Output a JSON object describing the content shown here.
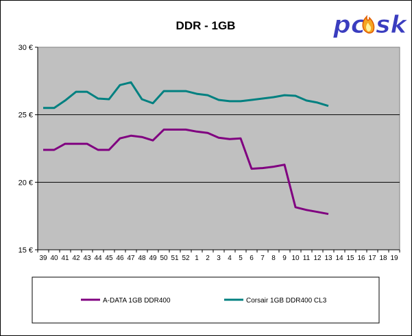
{
  "chart_data": {
    "type": "line",
    "title": "DDR - 1GB",
    "xlabel": "",
    "ylabel": "",
    "categories": [
      "39",
      "40",
      "41",
      "42",
      "43",
      "44",
      "45",
      "46",
      "47",
      "48",
      "49",
      "50",
      "51",
      "52",
      "1",
      "2",
      "3",
      "4",
      "5",
      "6",
      "7",
      "8",
      "9",
      "10",
      "11",
      "12",
      "13",
      "14",
      "15",
      "16",
      "17",
      "18",
      "19"
    ],
    "ylim": [
      15,
      30
    ],
    "yticks": [
      15,
      20,
      25,
      30
    ],
    "ytick_labels": [
      "15 €",
      "20 €",
      "25 €",
      "30 €"
    ],
    "grid": true,
    "legend_position": "bottom",
    "series": [
      {
        "name": "A-DATA 1GB DDR400",
        "color": "#800080",
        "values": [
          22.4,
          22.4,
          22.85,
          22.85,
          22.85,
          22.4,
          22.4,
          23.25,
          23.45,
          23.35,
          23.1,
          23.9,
          23.9,
          23.9,
          23.75,
          23.65,
          23.3,
          23.2,
          23.25,
          21.0,
          21.05,
          21.15,
          21.3,
          18.15,
          17.95,
          17.8,
          17.65,
          null,
          null,
          null,
          null,
          null,
          null
        ]
      },
      {
        "name": "Corsair 1GB DDR400 CL3",
        "color": "#008080",
        "values": [
          25.5,
          25.5,
          26.05,
          26.7,
          26.7,
          26.2,
          26.15,
          27.2,
          27.4,
          26.15,
          25.85,
          26.75,
          26.75,
          26.75,
          26.55,
          26.45,
          26.1,
          26.0,
          26.0,
          26.1,
          26.2,
          26.3,
          26.45,
          26.4,
          26.05,
          25.9,
          25.65,
          null,
          null,
          null,
          null,
          null,
          null
        ]
      }
    ]
  },
  "logo": {
    "text": "pc",
    "text2": "sk"
  }
}
